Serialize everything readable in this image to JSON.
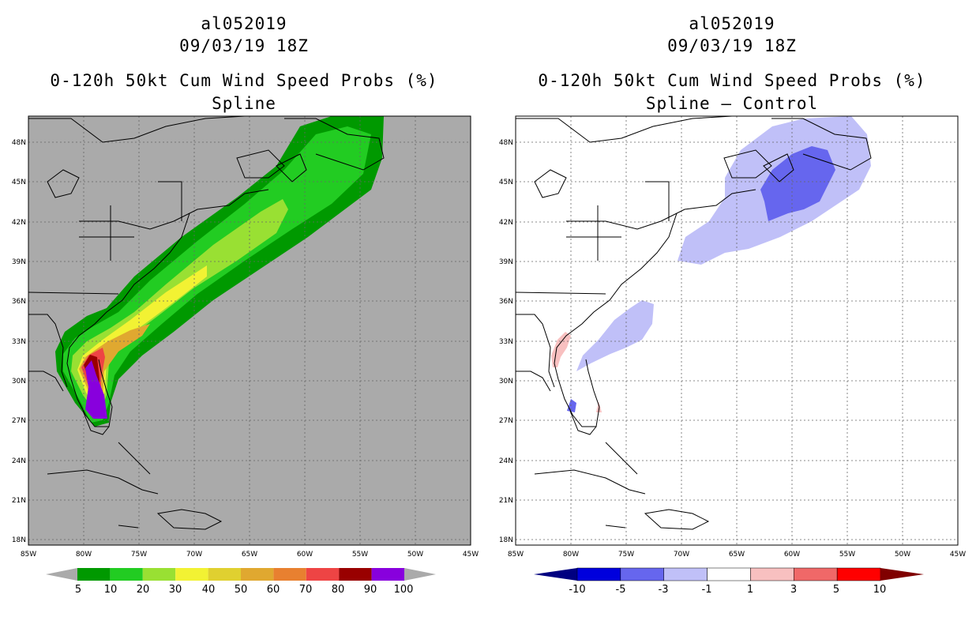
{
  "left_panel": {
    "storm_id": "al052019",
    "date_time": "09/03/19 18Z",
    "product": "0-120h 50kt Cum Wind Speed Probs (%)",
    "variant": "Spline",
    "lat_labels": [
      "48N",
      "45N",
      "42N",
      "39N",
      "36N",
      "33N",
      "30N",
      "27N",
      "24N",
      "21N",
      "18N"
    ],
    "lon_labels": [
      "85W",
      "80W",
      "75W",
      "70W",
      "65W",
      "60W",
      "55W",
      "50W",
      "45W"
    ],
    "colorbar": {
      "labels": [
        "5",
        "10",
        "20",
        "30",
        "40",
        "50",
        "60",
        "70",
        "80",
        "90",
        "100"
      ],
      "colors": [
        "#009900",
        "#22cc22",
        "#99e033",
        "#f2f233",
        "#e0d030",
        "#e0a830",
        "#e88030",
        "#ee4444",
        "#990000",
        "#8800dd"
      ]
    }
  },
  "right_panel": {
    "storm_id": "al052019",
    "date_time": "09/03/19 18Z",
    "product": "0-120h 50kt Cum Wind Speed Probs (%)",
    "variant": "Spline – Control",
    "lat_labels": [
      "48N",
      "45N",
      "42N",
      "39N",
      "36N",
      "33N",
      "30N",
      "27N",
      "24N",
      "21N",
      "18N"
    ],
    "lon_labels": [
      "85W",
      "80W",
      "75W",
      "70W",
      "65W",
      "60W",
      "55W",
      "50W",
      "45W"
    ],
    "colorbar": {
      "labels": [
        "-10",
        "-5",
        "-3",
        "-1",
        "1",
        "3",
        "5",
        "10"
      ],
      "colors": [
        "#0000dd",
        "#6666ee",
        "#c0c0f8",
        "#ffffff",
        "#f8c0c0",
        "#f06868",
        "#ff0000"
      ]
    }
  }
}
